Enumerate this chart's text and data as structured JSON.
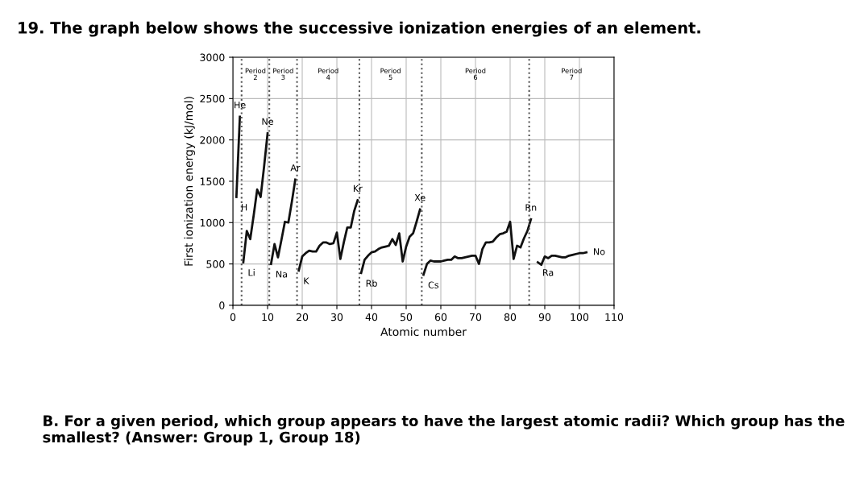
{
  "chart_data": {
    "type": "line",
    "title": "19. The graph below shows the successive ionization energies of an element.",
    "xlabel": "Atomic number",
    "ylabel": "First ionization energy (kJ/mol)",
    "series": [
      {
        "color": "#111111",
        "x": [
          1,
          2
        ],
        "values": [
          1310,
          2280
        ]
      },
      {
        "color": "#111111",
        "x": [
          3,
          4,
          5,
          6,
          7,
          8,
          9,
          10
        ],
        "values": [
          520,
          900,
          800,
          1090,
          1400,
          1310,
          1680,
          2080
        ]
      },
      {
        "color": "#111111",
        "x": [
          11,
          12,
          13,
          14,
          15,
          16,
          17,
          18
        ],
        "values": [
          500,
          740,
          580,
          790,
          1010,
          1000,
          1250,
          1520
        ]
      },
      {
        "color": "#111111",
        "x": [
          19,
          20,
          21,
          22,
          23,
          24,
          25,
          26,
          27,
          28,
          29,
          30,
          31,
          32,
          33,
          34,
          35,
          36
        ],
        "values": [
          420,
          590,
          630,
          660,
          650,
          650,
          720,
          760,
          760,
          740,
          750,
          880,
          560,
          760,
          940,
          940,
          1140,
          1270
        ]
      },
      {
        "color": "#111111",
        "x": [
          37,
          38,
          39,
          40,
          41,
          42,
          43,
          44,
          45,
          46,
          47,
          48,
          49,
          50,
          51,
          52,
          53,
          54
        ],
        "values": [
          390,
          550,
          600,
          640,
          650,
          680,
          700,
          710,
          720,
          800,
          730,
          870,
          530,
          710,
          830,
          870,
          1010,
          1160
        ]
      },
      {
        "color": "#111111",
        "x": [
          55,
          56,
          57,
          58,
          59,
          60,
          61,
          62,
          63,
          64,
          65,
          66,
          67,
          68,
          69,
          70,
          71,
          72,
          73,
          74,
          75,
          76,
          77,
          78,
          79,
          80,
          81,
          82,
          83,
          84,
          85,
          86
        ],
        "values": [
          370,
          500,
          540,
          530,
          530,
          530,
          540,
          550,
          550,
          590,
          570,
          570,
          580,
          590,
          600,
          600,
          500,
          680,
          760,
          760,
          770,
          820,
          860,
          870,
          890,
          1010,
          560,
          720,
          700,
          810,
          900,
          1040
        ]
      },
      {
        "color": "#111111",
        "x": [
          88,
          89,
          90,
          91,
          92,
          93,
          94,
          95,
          96,
          97,
          98,
          99,
          100,
          101,
          102
        ],
        "values": [
          520,
          490,
          590,
          570,
          600,
          600,
          590,
          580,
          580,
          600,
          610,
          620,
          630,
          630,
          640
        ]
      }
    ],
    "xlim": [
      0,
      110
    ],
    "xticks": [
      0,
      10,
      20,
      30,
      40,
      50,
      60,
      70,
      80,
      90,
      100,
      110
    ],
    "ylim": [
      0,
      3000
    ],
    "yticks": [
      0,
      500,
      1000,
      1500,
      2000,
      2500,
      3000
    ],
    "grid": true,
    "marker": "none",
    "line_style": "solid",
    "ref_lines": [
      {
        "axis": "x",
        "value": 2.5,
        "line_style": "dotted",
        "color": "#555555"
      },
      {
        "axis": "x",
        "value": 10.5,
        "line_style": "dotted",
        "color": "#555555"
      },
      {
        "axis": "x",
        "value": 18.5,
        "line_style": "dotted",
        "color": "#555555"
      },
      {
        "axis": "x",
        "value": 36.5,
        "line_style": "dotted",
        "color": "#555555"
      },
      {
        "axis": "x",
        "value": 54.5,
        "line_style": "dotted",
        "color": "#555555"
      },
      {
        "axis": "x",
        "value": 85.5,
        "line_style": "dotted",
        "color": "#555555"
      }
    ],
    "annotations": [
      "Period\n2",
      "Period\n3",
      "Period\n4",
      "Period\n5",
      "Period\n6",
      "Period\n7",
      {
        "text": "He",
        "x": 2,
        "y": 2280
      },
      {
        "text": "H",
        "x": 1,
        "y": 1310
      },
      {
        "text": "Ne",
        "x": 10,
        "y": 2080
      },
      {
        "text": "Li",
        "x": 3,
        "y": 520
      },
      {
        "text": "Ar",
        "x": 18,
        "y": 1520
      },
      {
        "text": "Na",
        "x": 11,
        "y": 500
      },
      {
        "text": "Kr",
        "x": 36,
        "y": 1270
      },
      {
        "text": "K",
        "x": 19,
        "y": 420
      },
      {
        "text": "Xe",
        "x": 54,
        "y": 1160
      },
      {
        "text": "Rb",
        "x": 37,
        "y": 390
      },
      {
        "text": "Rn",
        "x": 86,
        "y": 1040
      },
      {
        "text": "Cs",
        "x": 55,
        "y": 370
      },
      {
        "text": "No",
        "x": 102,
        "y": 640
      },
      {
        "text": "Ra",
        "x": 88,
        "y": 520
      },
      "B. For a given period, which group appears to have the largest atomic radii? Which group has the smallest? (Answer: Group 1, Group 18)"
    ]
  }
}
